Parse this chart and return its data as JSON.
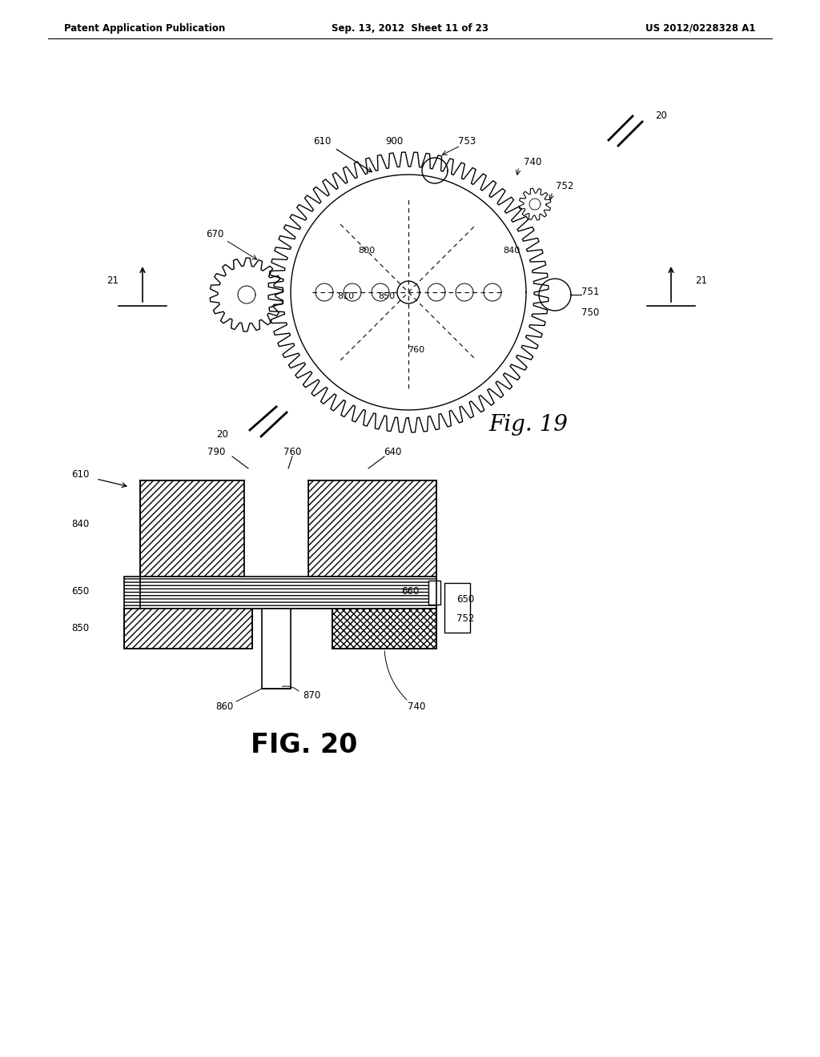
{
  "bg_color": "#ffffff",
  "header_left": "Patent Application Publication",
  "header_mid": "Sep. 13, 2012  Sheet 11 of 23",
  "header_right": "US 2012/0228328 A1",
  "fig19_caption": "Fig. 19",
  "fig20_caption": "FIG. 20"
}
